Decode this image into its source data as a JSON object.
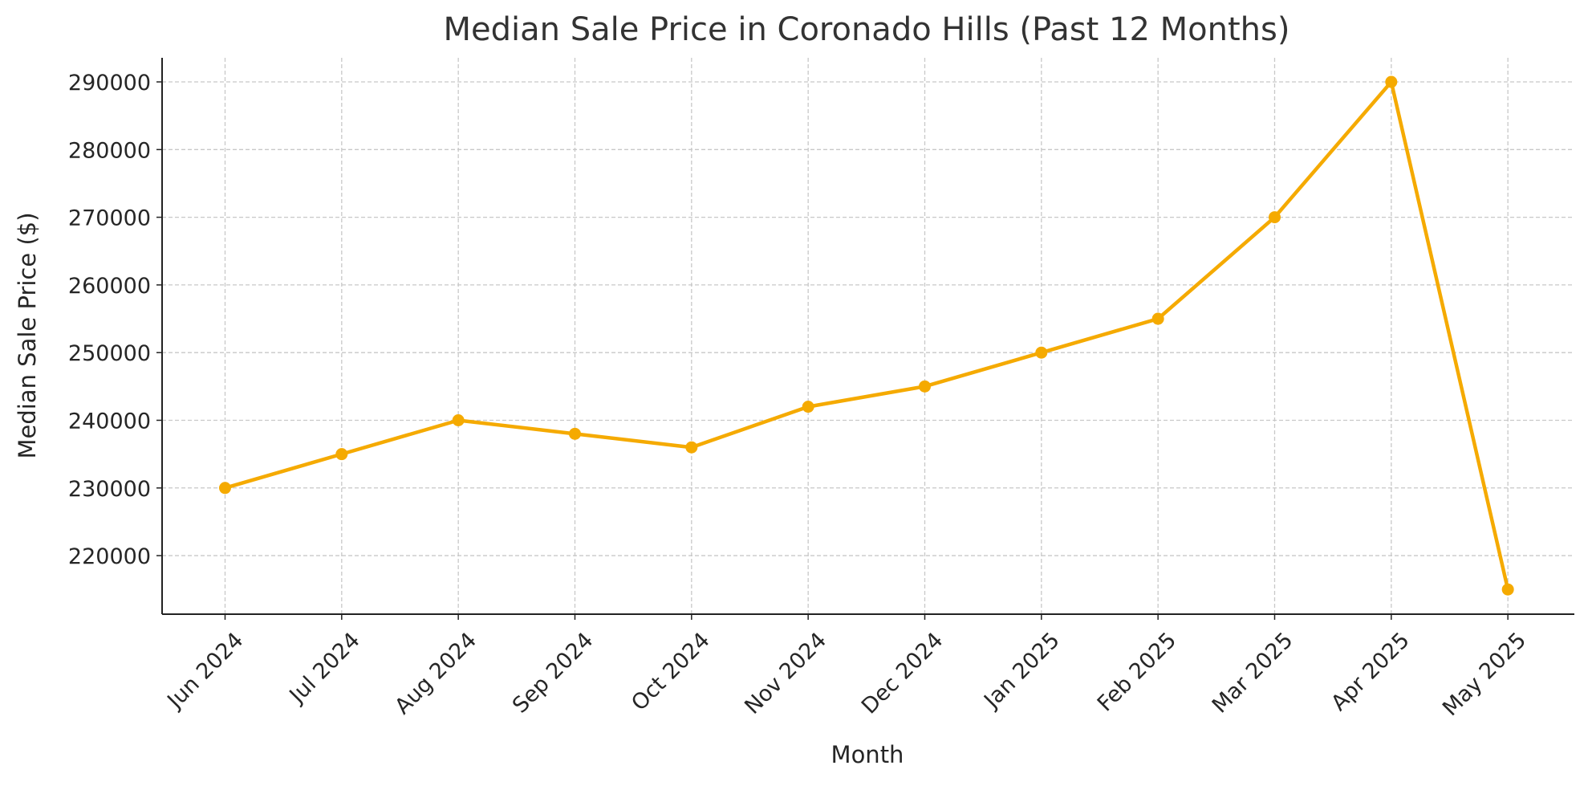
{
  "chart_data": {
    "type": "line",
    "title": "Median Sale Price in Coronado Hills (Past 12 Months)",
    "xlabel": "Month",
    "ylabel": "Median Sale Price ($)",
    "categories": [
      "Jun 2024",
      "Jul 2024",
      "Aug 2024",
      "Sep 2024",
      "Oct 2024",
      "Nov 2024",
      "Dec 2024",
      "Jan 2025",
      "Feb 2025",
      "Mar 2025",
      "Apr 2025",
      "May 2025"
    ],
    "series": [
      {
        "name": "Median Sale Price",
        "values": [
          230000,
          235000,
          240000,
          238000,
          236000,
          242000,
          245000,
          250000,
          255000,
          270000,
          290000,
          215000
        ],
        "color": "#F5AA00"
      }
    ],
    "yticks": [
      "220000",
      "230000",
      "240000",
      "250000",
      "260000",
      "270000",
      "280000",
      "290000"
    ],
    "ylim": [
      211350,
      293560
    ],
    "xlim": [
      -0.54,
      11.57
    ],
    "grid": true,
    "legend": "none"
  }
}
